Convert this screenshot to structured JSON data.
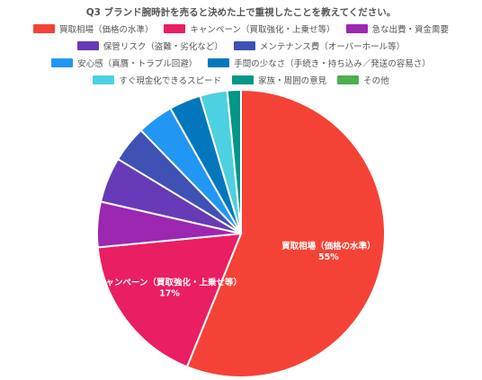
{
  "chart_data": {
    "type": "pie",
    "title": "Q3 ブランド腕時計を売ると決めた上で重視したことを教えてください。",
    "legend_position": "top",
    "slices": [
      {
        "label": "買取相場（価格の水準）",
        "value": 55,
        "color": "#f44336",
        "data_label": "買取相場（価格の水準）",
        "pct_label": "55%"
      },
      {
        "label": "キャンペーン（買取強化・上乗せ等）",
        "value": 17,
        "color": "#e91e63",
        "data_label": "キャンペーン（買取強化・上乗せ等）",
        "pct_label": "17%"
      },
      {
        "label": "急な出費・資金需要",
        "value": 5,
        "color": "#9c27b0",
        "data_label": "",
        "pct_label": ""
      },
      {
        "label": "保管リスク（盗難・劣化など）",
        "value": 5,
        "color": "#673ab7",
        "data_label": "",
        "pct_label": ""
      },
      {
        "label": "メンテナンス費（オーバーホール等）",
        "value": 4,
        "color": "#3f51b5",
        "data_label": "",
        "pct_label": ""
      },
      {
        "label": "安心感（真贋・トラブル回避）",
        "value": 4,
        "color": "#2196f3",
        "data_label": "",
        "pct_label": ""
      },
      {
        "label": "手間の少なさ（手続き・持ち込み／発送の容易さ）",
        "value": 3.5,
        "color": "#0277bd",
        "data_label": "",
        "pct_label": ""
      },
      {
        "label": "すぐ現金化できるスピード",
        "value": 3,
        "color": "#4dd0e1",
        "data_label": "",
        "pct_label": ""
      },
      {
        "label": "家族・周囲の意見",
        "value": 1.5,
        "color": "#009688",
        "data_label": "",
        "pct_label": ""
      },
      {
        "label": "その他",
        "value": 0,
        "color": "#4caf50",
        "data_label": "",
        "pct_label": ""
      }
    ]
  }
}
